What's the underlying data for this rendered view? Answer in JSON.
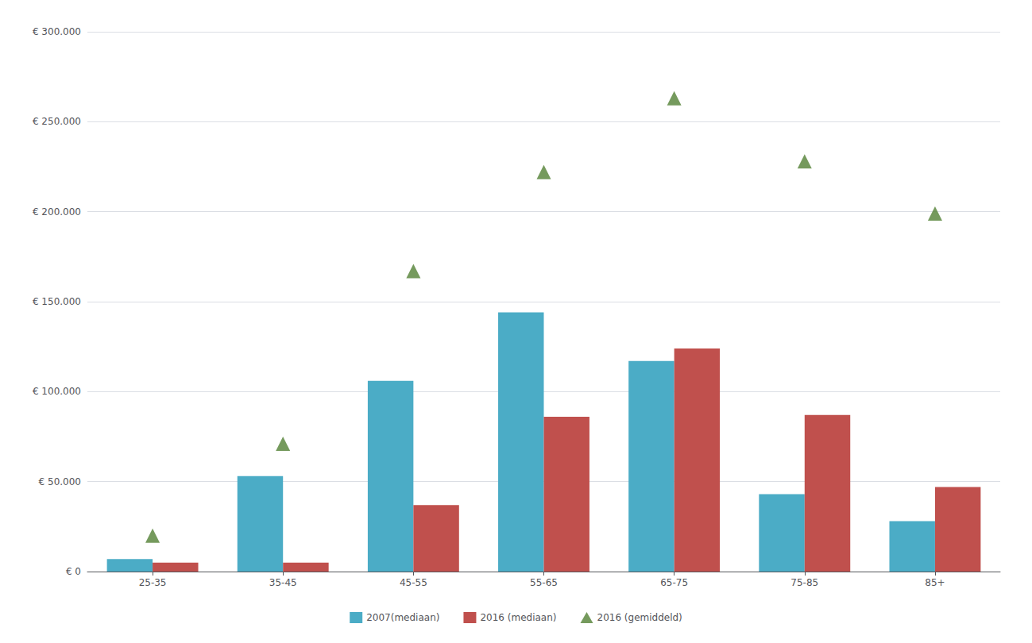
{
  "chart_data": {
    "type": "bar",
    "categories": [
      "25-35",
      "35-45",
      "45-55",
      "55-65",
      "65-75",
      "75-85",
      "85+"
    ],
    "series": [
      {
        "name": "2007(mediaan)",
        "type": "bar",
        "color": "#4BACC6",
        "values": [
          7000,
          53000,
          106000,
          144000,
          117000,
          43000,
          28000
        ]
      },
      {
        "name": "2016 (mediaan)",
        "type": "bar",
        "color": "#C0504D",
        "values": [
          5000,
          5000,
          37000,
          86000,
          124000,
          87000,
          47000
        ]
      },
      {
        "name": "2016 (gemiddeld)",
        "type": "scatter",
        "marker": "triangle",
        "color": "#538135",
        "values": [
          20000,
          71000,
          167000,
          222000,
          263000,
          228000,
          199000
        ]
      }
    ],
    "ylim": [
      0,
      300000
    ],
    "yticks": [
      {
        "value": 0,
        "label": "€ 0"
      },
      {
        "value": 50000,
        "label": "€ 50.000"
      },
      {
        "value": 100000,
        "label": "€ 100.000"
      },
      {
        "value": 150000,
        "label": "€ 150.000"
      },
      {
        "value": 200000,
        "label": "€ 200.000"
      },
      {
        "value": 250000,
        "label": "€ 250.000"
      },
      {
        "value": 300000,
        "label": "€ 300.000"
      }
    ],
    "grid": true,
    "legend": "bottom"
  }
}
